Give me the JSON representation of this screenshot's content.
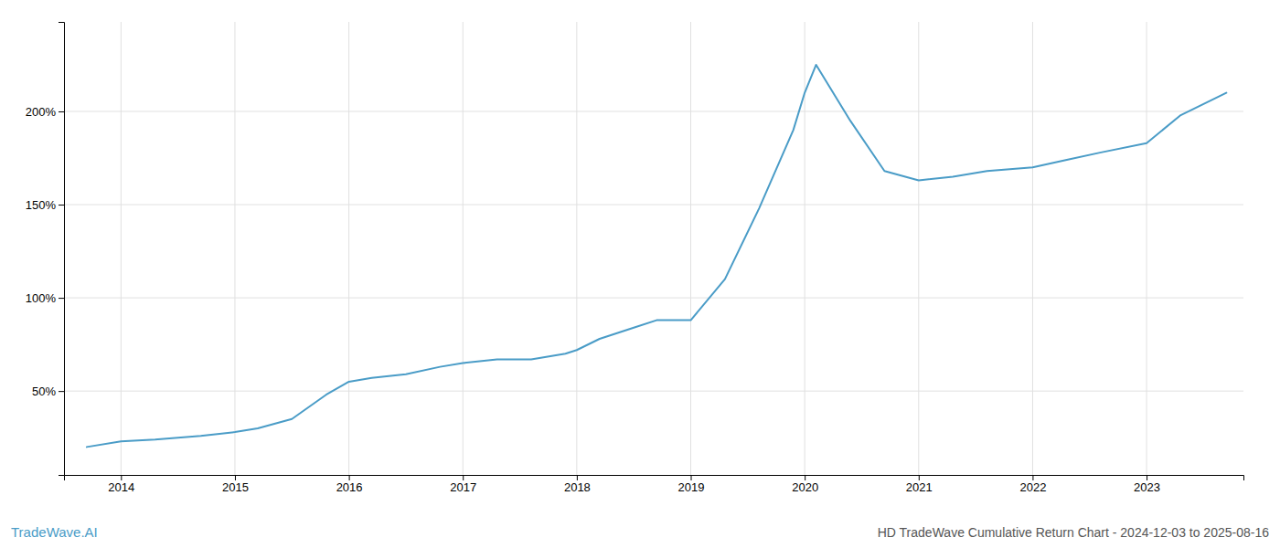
{
  "chart_data": {
    "type": "line",
    "title": "HD TradeWave Cumulative Return Chart - 2024-12-03 to 2025-08-16",
    "annotations": [
      "TradeWave.AI"
    ],
    "x": [
      2013.7,
      2014.0,
      2014.3,
      2014.7,
      2015.0,
      2015.2,
      2015.5,
      2015.8,
      2016.0,
      2016.2,
      2016.5,
      2016.8,
      2017.0,
      2017.3,
      2017.6,
      2017.9,
      2018.0,
      2018.2,
      2018.5,
      2018.7,
      2019.0,
      2019.3,
      2019.6,
      2019.9,
      2020.0,
      2020.1,
      2020.4,
      2020.7,
      2021.0,
      2021.3,
      2021.6,
      2022.0,
      2022.3,
      2022.6,
      2023.0,
      2023.3,
      2023.7
    ],
    "values": [
      20,
      23,
      24,
      26,
      28,
      30,
      35,
      48,
      55,
      57,
      59,
      63,
      65,
      67,
      67,
      70,
      72,
      78,
      84,
      88,
      88,
      110,
      148,
      190,
      210,
      225,
      195,
      168,
      163,
      165,
      168,
      170,
      174,
      178,
      183,
      198,
      210
    ],
    "color": "#4a9cc7",
    "xlim": [
      2013.5,
      2023.85
    ],
    "ylim": [
      5,
      248
    ],
    "xticks": [
      2014,
      2015,
      2016,
      2017,
      2018,
      2019,
      2020,
      2021,
      2022,
      2023
    ],
    "yticks": [
      {
        "value": 50,
        "label": "50%"
      },
      {
        "value": 100,
        "label": "100%"
      },
      {
        "value": 150,
        "label": "150%"
      },
      {
        "value": 200,
        "label": "200%"
      }
    ],
    "grid": true
  }
}
